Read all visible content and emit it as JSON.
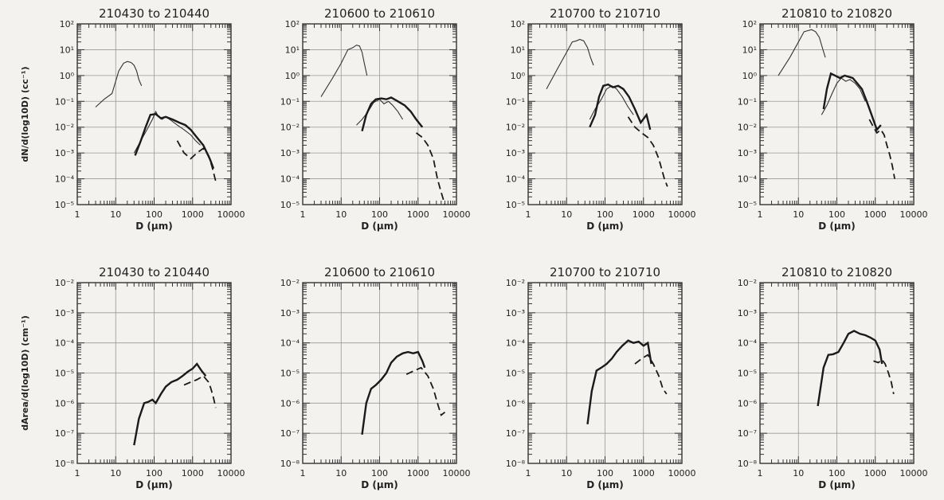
{
  "chart_data": [
    {
      "type": "line",
      "title": "210430 to 210440",
      "xlabel": "D (μm)",
      "ylabel": "dN/d(log10D) (cc⁻¹)",
      "xscale": "log",
      "yscale": "log",
      "xlim": [
        1,
        10000
      ],
      "ylim": [
        1e-05,
        100
      ],
      "xticks": [
        "1",
        "10",
        "100",
        "1000",
        "10000"
      ],
      "yticks": [
        "10⁻⁵",
        "10⁻⁴",
        "10⁻³",
        "10⁻²",
        "10⁻¹",
        "10⁰",
        "10¹",
        "10²"
      ],
      "grid": true,
      "series": [
        {
          "style": "thin",
          "x": [
            3,
            5,
            8,
            12,
            16,
            20,
            25,
            30,
            35,
            40,
            47
          ],
          "y": [
            0.06,
            0.12,
            0.2,
            1.5,
            3.0,
            3.5,
            3.2,
            2.5,
            1.5,
            0.7,
            0.4
          ]
        },
        {
          "style": "thin",
          "x": [
            30,
            45,
            65,
            90,
            110,
            130,
            160,
            200,
            280,
            400,
            600,
            900,
            1200,
            1600
          ],
          "y": [
            0.001,
            0.003,
            0.008,
            0.02,
            0.04,
            0.025,
            0.02,
            0.025,
            0.018,
            0.012,
            0.008,
            0.005,
            0.003,
            0.002
          ]
        },
        {
          "style": "thick",
          "x": [
            32,
            45,
            60,
            80,
            110,
            150,
            200,
            300,
            450,
            650,
            900,
            1300,
            1900,
            2800,
            3500
          ],
          "y": [
            0.0008,
            0.003,
            0.01,
            0.03,
            0.032,
            0.022,
            0.025,
            0.02,
            0.015,
            0.012,
            0.008,
            0.004,
            0.002,
            0.0006,
            0.00025
          ]
        },
        {
          "style": "dashed",
          "x": [
            400,
            600,
            900,
            1300,
            1900,
            2600,
            3200,
            4000
          ],
          "y": [
            0.003,
            0.001,
            0.0006,
            0.001,
            0.0015,
            0.0008,
            0.0003,
            8e-05
          ]
        }
      ]
    },
    {
      "type": "line",
      "title": "210600 to 210610",
      "xlabel": "D (μm)",
      "ylabel": "",
      "xscale": "log",
      "yscale": "log",
      "xlim": [
        1,
        10000
      ],
      "ylim": [
        1e-05,
        100
      ],
      "xticks": [
        "1",
        "10",
        "100",
        "1000",
        "10000"
      ],
      "yticks": [
        "10⁻⁵",
        "10⁻⁴",
        "10⁻³",
        "10⁻²",
        "10⁻¹",
        "10⁰",
        "10¹",
        "10²"
      ],
      "grid": true,
      "series": [
        {
          "style": "thin",
          "x": [
            3,
            6,
            10,
            15,
            20,
            25,
            30,
            35,
            40,
            47
          ],
          "y": [
            0.15,
            0.8,
            3,
            10,
            12,
            15,
            14,
            8,
            3,
            1.0
          ]
        },
        {
          "style": "thin",
          "x": [
            25,
            35,
            50,
            70,
            100,
            130,
            170,
            220,
            300,
            400
          ],
          "y": [
            0.012,
            0.02,
            0.04,
            0.09,
            0.12,
            0.08,
            0.1,
            0.07,
            0.04,
            0.02
          ]
        },
        {
          "style": "thick",
          "x": [
            35,
            45,
            60,
            80,
            110,
            150,
            200,
            300,
            450,
            650,
            900,
            1300
          ],
          "y": [
            0.007,
            0.03,
            0.08,
            0.12,
            0.13,
            0.12,
            0.14,
            0.1,
            0.07,
            0.04,
            0.02,
            0.01
          ]
        },
        {
          "style": "dashed",
          "x": [
            900,
            1300,
            1800,
            2500,
            3200,
            4000,
            5000
          ],
          "y": [
            0.006,
            0.004,
            0.002,
            0.0006,
            0.0001,
            3e-05,
            1e-05
          ]
        }
      ]
    },
    {
      "type": "line",
      "title": "210700 to 210710",
      "xlabel": "D (μm)",
      "ylabel": "",
      "xscale": "log",
      "yscale": "log",
      "xlim": [
        1,
        10000
      ],
      "ylim": [
        1e-05,
        100
      ],
      "xticks": [
        "1",
        "10",
        "100",
        "1000",
        "10000"
      ],
      "yticks": [
        "10⁻⁵",
        "10⁻⁴",
        "10⁻³",
        "10⁻²",
        "10⁻¹",
        "10⁰",
        "10¹",
        "10²"
      ],
      "grid": true,
      "series": [
        {
          "style": "thin",
          "x": [
            3,
            6,
            10,
            14,
            18,
            22,
            28,
            35,
            42,
            50
          ],
          "y": [
            0.3,
            2,
            8,
            20,
            22,
            25,
            22,
            12,
            5,
            2.5
          ]
        },
        {
          "style": "thin",
          "x": [
            40,
            55,
            80,
            110,
            150,
            200,
            280,
            400,
            550
          ],
          "y": [
            0.02,
            0.05,
            0.12,
            0.3,
            0.4,
            0.3,
            0.15,
            0.06,
            0.03
          ]
        },
        {
          "style": "thick",
          "x": [
            40,
            55,
            70,
            90,
            120,
            160,
            220,
            300,
            420,
            600,
            850,
            1200,
            1500
          ],
          "y": [
            0.01,
            0.03,
            0.15,
            0.4,
            0.45,
            0.35,
            0.4,
            0.3,
            0.15,
            0.05,
            0.015,
            0.03,
            0.008
          ]
        },
        {
          "style": "dashed",
          "x": [
            400,
            600,
            900,
            1300,
            1800,
            2500,
            3500,
            4200
          ],
          "y": [
            0.025,
            0.01,
            0.006,
            0.004,
            0.002,
            0.0006,
            0.0001,
            5e-05
          ]
        }
      ]
    },
    {
      "type": "line",
      "title": "210810 to 210820",
      "xlabel": "D (μm)",
      "ylabel": "",
      "xscale": "log",
      "yscale": "log",
      "xlim": [
        1,
        10000
      ],
      "ylim": [
        1e-05,
        100
      ],
      "xticks": [
        "1",
        "10",
        "100",
        "1000",
        "10000"
      ],
      "yticks": [
        "10⁻⁵",
        "10⁻⁴",
        "10⁻³",
        "10⁻²",
        "10⁻¹",
        "10⁰",
        "10¹",
        "10²"
      ],
      "grid": true,
      "series": [
        {
          "style": "thin",
          "x": [
            3,
            6,
            10,
            14,
            18,
            22,
            28,
            35,
            42,
            50
          ],
          "y": [
            1.0,
            5,
            20,
            50,
            55,
            60,
            50,
            30,
            12,
            5
          ]
        },
        {
          "style": "thin",
          "x": [
            40,
            55,
            75,
            100,
            130,
            170,
            220,
            300,
            400,
            550
          ],
          "y": [
            0.03,
            0.07,
            0.2,
            0.5,
            0.8,
            0.6,
            0.7,
            0.5,
            0.3,
            0.1
          ]
        },
        {
          "style": "thick",
          "x": [
            45,
            55,
            70,
            90,
            120,
            160,
            200,
            260,
            340,
            450,
            600,
            800,
            1100,
            1400
          ],
          "y": [
            0.05,
            0.3,
            1.2,
            1.0,
            0.8,
            1.0,
            0.9,
            0.8,
            0.5,
            0.3,
            0.1,
            0.03,
            0.008,
            0.012
          ]
        },
        {
          "style": "dashed",
          "x": [
            700,
            900,
            1100,
            1400,
            1700,
            2000,
            2400,
            2800,
            3200
          ],
          "y": [
            0.02,
            0.01,
            0.006,
            0.008,
            0.005,
            0.002,
            0.0008,
            0.0003,
            0.0001
          ]
        }
      ]
    },
    {
      "type": "line",
      "title": "210430 to 210440",
      "xlabel": "D (μm)",
      "ylabel": "dArea/d(log10D) (cm⁻¹)",
      "xscale": "log",
      "yscale": "log",
      "xlim": [
        1,
        10000
      ],
      "ylim": [
        1e-08,
        0.01
      ],
      "xticks": [
        "1",
        "10",
        "100",
        "1000",
        "10000"
      ],
      "yticks": [
        "10⁻⁸",
        "10⁻⁷",
        "10⁻⁶",
        "10⁻⁵",
        "10⁻⁴",
        "10⁻³",
        "10⁻²"
      ],
      "grid": true,
      "series": [
        {
          "style": "thick",
          "x": [
            30,
            40,
            55,
            70,
            90,
            110,
            150,
            200,
            280,
            400,
            550,
            750,
            1000,
            1300,
            1700,
            2200
          ],
          "y": [
            4e-08,
            3e-07,
            1e-06,
            1.1e-06,
            1.3e-06,
            1e-06,
            2e-06,
            3.5e-06,
            5e-06,
            6e-06,
            8e-06,
            1.1e-05,
            1.4e-05,
            2e-05,
            1.2e-05,
            8e-06
          ]
        },
        {
          "style": "dashed",
          "x": [
            600,
            900,
            1300,
            1900,
            2600,
            3000,
            3500,
            4000
          ],
          "y": [
            4e-06,
            5e-06,
            6e-06,
            8e-06,
            5e-06,
            3e-06,
            1.5e-06,
            7e-07
          ]
        }
      ]
    },
    {
      "type": "line",
      "title": "210600 to 210610",
      "xlabel": "D (μm)",
      "ylabel": "",
      "xscale": "log",
      "yscale": "log",
      "xlim": [
        1,
        10000
      ],
      "ylim": [
        1e-08,
        0.01
      ],
      "xticks": [
        "1",
        "10",
        "100",
        "1000",
        "10000"
      ],
      "yticks": [
        "10⁻⁸",
        "10⁻⁷",
        "10⁻⁶",
        "10⁻⁵",
        "10⁻⁴",
        "10⁻³",
        "10⁻²"
      ],
      "grid": true,
      "series": [
        {
          "style": "thick",
          "x": [
            35,
            45,
            60,
            80,
            110,
            150,
            200,
            280,
            400,
            550,
            750,
            1000,
            1300,
            1500
          ],
          "y": [
            9e-08,
            1e-06,
            3e-06,
            4e-06,
            6e-06,
            1e-05,
            2.2e-05,
            3.5e-05,
            4.5e-05,
            5e-05,
            4.5e-05,
            5e-05,
            2.5e-05,
            1.5e-05
          ]
        },
        {
          "style": "dashed",
          "x": [
            500,
            800,
            1200,
            1800,
            2500,
            3200,
            4000,
            5000
          ],
          "y": [
            9e-06,
            1.2e-05,
            1.5e-05,
            8e-06,
            3e-06,
            1e-06,
            4e-07,
            5e-07
          ]
        }
      ]
    },
    {
      "type": "line",
      "title": "210700 to 210710",
      "xlabel": "D (μm)",
      "ylabel": "",
      "xscale": "log",
      "yscale": "log",
      "xlim": [
        1,
        10000
      ],
      "ylim": [
        1e-08,
        0.01
      ],
      "xticks": [
        "1",
        "10",
        "100",
        "1000",
        "10000"
      ],
      "yticks": [
        "10⁻⁸",
        "10⁻⁷",
        "10⁻⁶",
        "10⁻⁵",
        "10⁻⁴",
        "10⁻³",
        "10⁻²"
      ],
      "grid": true,
      "series": [
        {
          "style": "thick",
          "x": [
            35,
            45,
            60,
            80,
            110,
            150,
            200,
            280,
            400,
            550,
            750,
            1000,
            1300,
            1600
          ],
          "y": [
            2e-07,
            2.5e-06,
            1.2e-05,
            1.5e-05,
            2e-05,
            3e-05,
            5e-05,
            8e-05,
            0.00012,
            0.0001,
            0.00011,
            8e-05,
            0.0001,
            2e-05
          ]
        },
        {
          "style": "dashed",
          "x": [
            600,
            900,
            1300,
            1800,
            2500,
            3200,
            4000
          ],
          "y": [
            2e-05,
            3e-05,
            4e-05,
            2e-05,
            8e-06,
            3e-06,
            2e-06
          ]
        }
      ]
    },
    {
      "type": "line",
      "title": "210810 to 210820",
      "xlabel": "D (μm)",
      "ylabel": "",
      "xscale": "log",
      "yscale": "log",
      "xlim": [
        1,
        10000
      ],
      "ylim": [
        1e-08,
        0.01
      ],
      "xticks": [
        "1",
        "10",
        "100",
        "1000",
        "10000"
      ],
      "yticks": [
        "10⁻⁸",
        "10⁻⁷",
        "10⁻⁶",
        "10⁻⁵",
        "10⁻⁴",
        "10⁻³",
        "10⁻²"
      ],
      "grid": true,
      "series": [
        {
          "style": "thick",
          "x": [
            32,
            45,
            60,
            80,
            110,
            150,
            200,
            280,
            400,
            550,
            750,
            1000,
            1300,
            1500
          ],
          "y": [
            8e-07,
            1.5e-05,
            4e-05,
            4.2e-05,
            5e-05,
            0.0001,
            0.0002,
            0.00025,
            0.0002,
            0.00018,
            0.00015,
            0.00012,
            6e-05,
            2e-05
          ]
        },
        {
          "style": "dashed",
          "x": [
            900,
            1200,
            1500,
            1800,
            2200,
            2600,
            3000
          ],
          "y": [
            2.5e-05,
            2.2e-05,
            2.8e-05,
            2e-05,
            1e-05,
            5e-06,
            2e-06
          ]
        }
      ]
    }
  ]
}
